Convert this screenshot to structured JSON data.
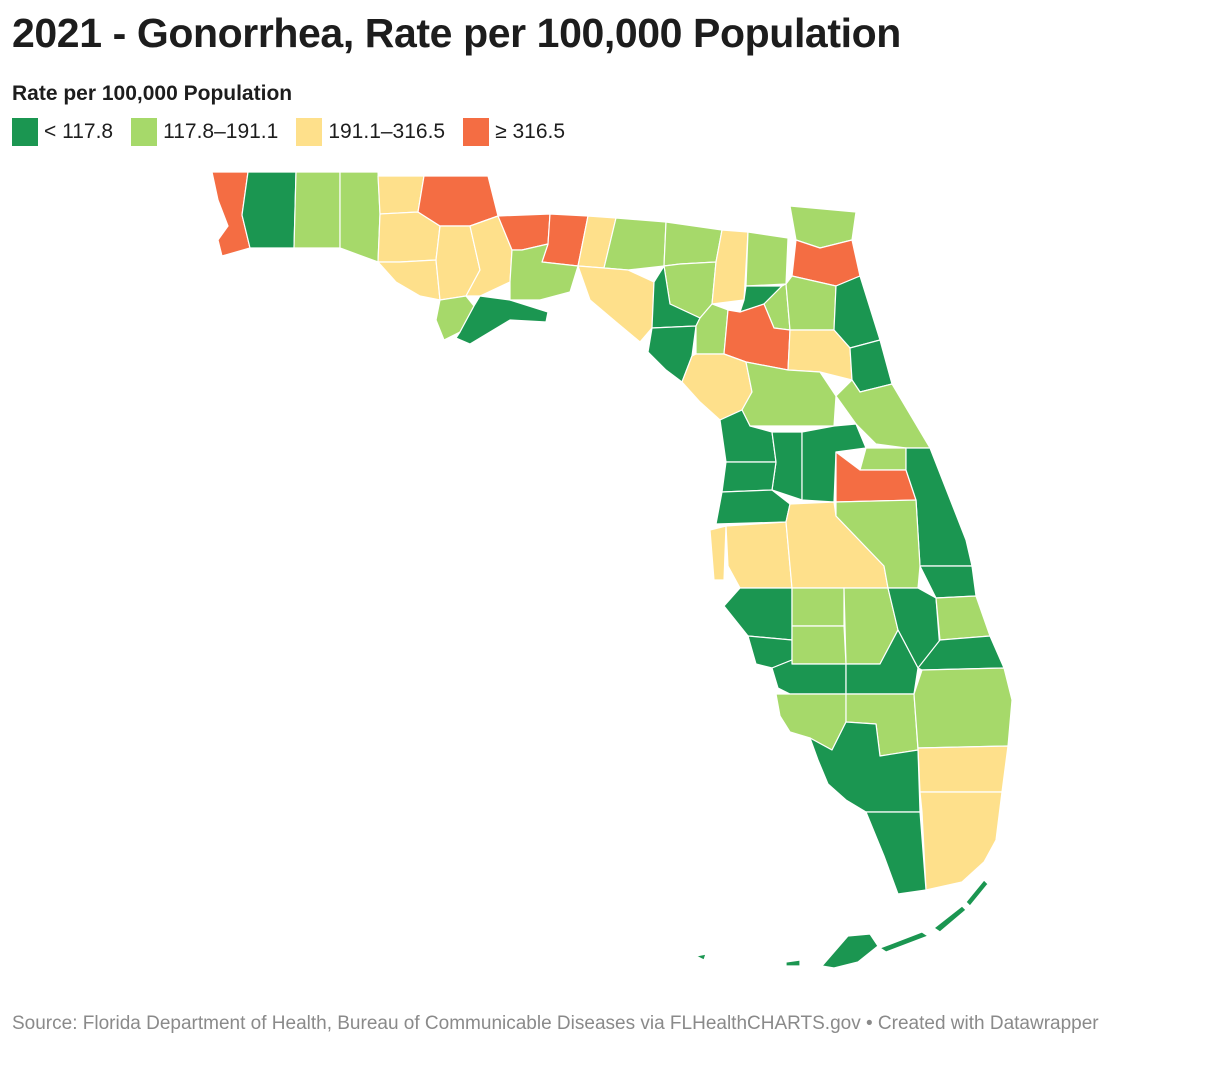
{
  "title": "2021 - Gonorrhea, Rate per 100,000 Population",
  "legend": {
    "title": "Rate per 100,000 Population",
    "items": [
      {
        "label": "< 117.8",
        "color": "#1b9651"
      },
      {
        "label": "117.8–191.1",
        "color": "#a6d96a"
      },
      {
        "label": "191.1–316.5",
        "color": "#fee08b"
      },
      {
        "label": "≥ 316.5",
        "color": "#f46d43"
      }
    ]
  },
  "source": "Source: Florida Department of Health, Bureau of Communicable Diseases via FLHealthCHARTS.gov • Created with Datawrapper",
  "map_data": {
    "type": "choropleth",
    "region": "Florida counties",
    "classes": [
      "< 117.8",
      "117.8–191.1",
      "191.1–316.5",
      "≥ 316.5"
    ]
  }
}
